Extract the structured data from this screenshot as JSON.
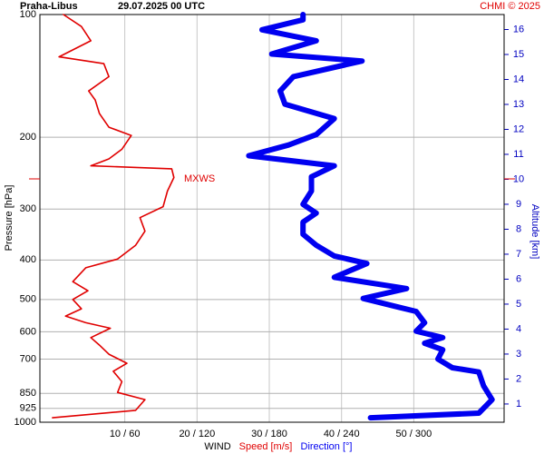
{
  "chart_data": {
    "type": "line",
    "title": "Praha-Libus",
    "subtitle": "29.07.2025 00 UTC",
    "credit": "CHMI © 2025",
    "y_label": "Pressure [hPa]",
    "y2_label": "Altitude [km]",
    "x_label": "WIND",
    "log_y": true,
    "grid": true,
    "ylim": [
      100,
      1000
    ],
    "yticks": [
      100,
      200,
      300,
      400,
      500,
      600,
      700,
      850,
      925,
      1000
    ],
    "y2lim": [
      0.27,
      16.6
    ],
    "y2ticks": [
      1,
      2,
      3,
      4,
      5,
      6,
      7,
      8,
      9,
      10,
      11,
      12,
      13,
      14,
      15,
      16
    ],
    "xlim": [
      -1.75,
      62.5
    ],
    "x2lim": [
      -10.5,
      375
    ],
    "xticks": [
      {
        "value": 10,
        "label": "10 / 60"
      },
      {
        "value": 20,
        "label": "20 / 120"
      },
      {
        "value": 30,
        "label": "30 / 180"
      },
      {
        "value": 40,
        "label": "40 / 240"
      },
      {
        "value": 50,
        "label": "50 / 300"
      }
    ],
    "annotations": [
      {
        "text": "MXWS",
        "y": 253
      }
    ],
    "series": [
      {
        "name": "Speed [m/s]",
        "color": "#e00000",
        "x": [
          0,
          11.5,
          12.8,
          9,
          9.6,
          8.4,
          10.3,
          7.8,
          6.5,
          5.3,
          8,
          4.6,
          1.8,
          4,
          2.8,
          4.9,
          2.8,
          4.6,
          9,
          11.5,
          12.8,
          12.1,
          15.3,
          15.9,
          16.8,
          16.5,
          5.3,
          7.8,
          9.6,
          10.9,
          7.8,
          6.5,
          5.9,
          5,
          7.8,
          7.1,
          0.9,
          5.3,
          4,
          1.5
        ],
        "y": [
          975,
          935,
          880,
          845,
          795,
          750,
          717,
          681,
          647,
          620,
          588,
          570,
          549,
          527,
          500,
          476,
          452,
          418,
          398,
          368,
          340,
          315,
          296,
          271,
          251,
          239,
          235,
          226,
          214,
          198,
          189,
          175,
          162,
          154,
          142,
          132,
          127,
          116,
          107,
          100
        ]
      },
      {
        "name": "Direction [°]",
        "color": "#0000f0",
        "axis": "x2",
        "x": [
          264,
          354,
          365,
          358,
          354,
          332,
          320,
          324,
          309,
          324,
          302,
          309,
          302,
          287,
          258,
          294,
          234,
          261,
          234,
          219,
          208,
          208,
          219,
          208,
          215,
          215,
          234,
          163,
          196,
          219,
          234,
          193,
          189,
          200,
          257,
          182,
          219,
          174,
          208,
          208
        ],
        "y": [
          975,
          950,
          880,
          815,
          753,
          735,
          700,
          664,
          640,
          620,
          598,
          570,
          535,
          522,
          497,
          470,
          441,
          408,
          391,
          368,
          346,
          323,
          307,
          292,
          271,
          250,
          235,
          222,
          209,
          197,
          180,
          166,
          154,
          142,
          130,
          125,
          116,
          109,
          103,
          100
        ]
      }
    ]
  }
}
